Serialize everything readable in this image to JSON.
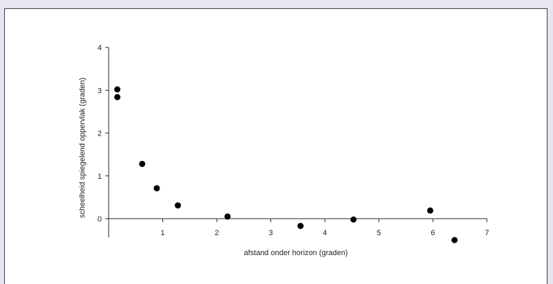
{
  "chart_data": {
    "type": "scatter",
    "title": "",
    "xlabel": "afstand onder horizon (graden)",
    "ylabel": "scheelheid spiegelend oppervlak (graden)",
    "xlim": [
      0,
      7
    ],
    "ylim": [
      -0.5,
      4
    ],
    "xticks": [
      1,
      2,
      3,
      4,
      5,
      6,
      7
    ],
    "yticks": [
      0,
      1,
      2,
      3,
      4
    ],
    "grid": false,
    "legend": "none",
    "marker_color": "#000000",
    "points": [
      {
        "x": 0.16,
        "y": 3.02
      },
      {
        "x": 0.16,
        "y": 2.84
      },
      {
        "x": 0.62,
        "y": 1.28
      },
      {
        "x": 0.89,
        "y": 0.71
      },
      {
        "x": 1.28,
        "y": 0.31
      },
      {
        "x": 2.2,
        "y": 0.05
      },
      {
        "x": 3.55,
        "y": -0.17
      },
      {
        "x": 4.53,
        "y": -0.02
      },
      {
        "x": 5.95,
        "y": 0.19
      },
      {
        "x": 6.4,
        "y": -0.5
      }
    ]
  }
}
